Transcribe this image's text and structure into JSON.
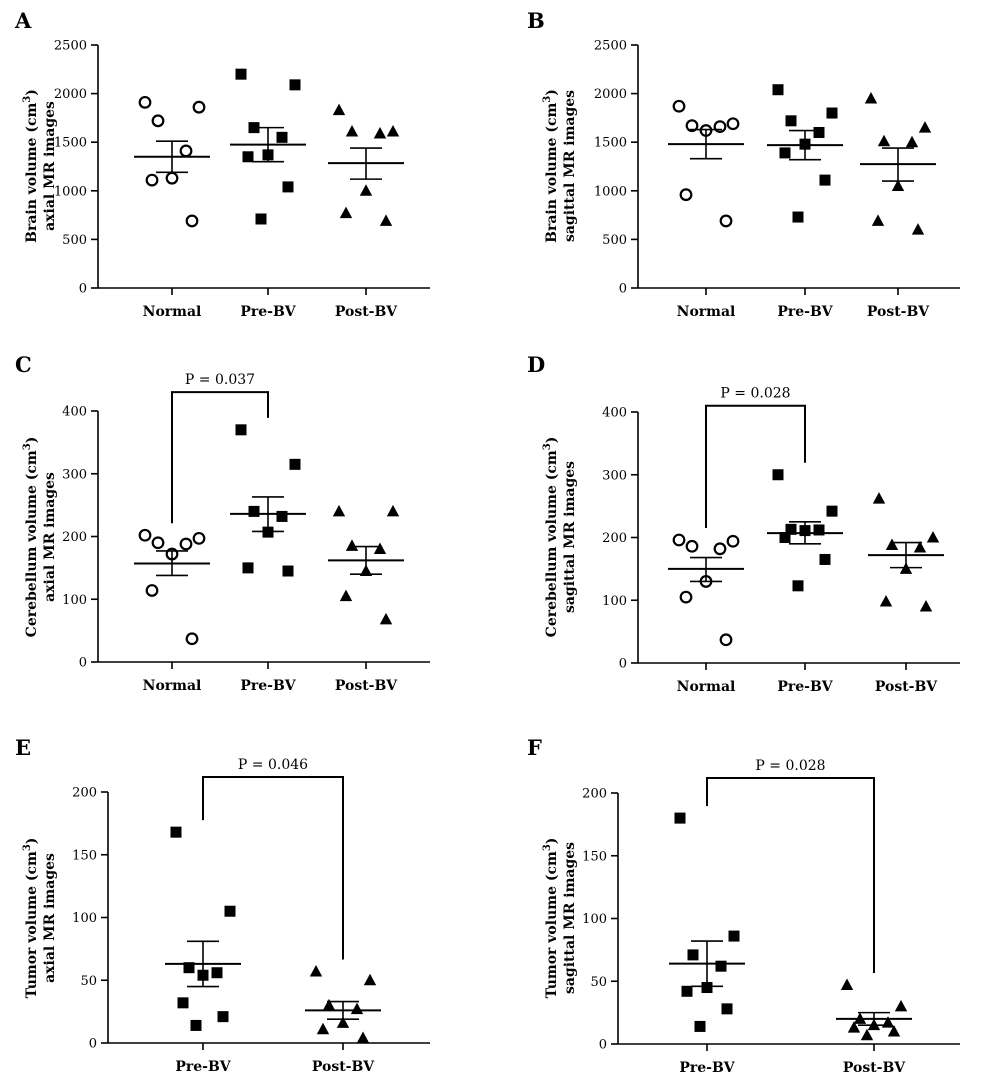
{
  "chart_data": [
    {
      "type": "scatter",
      "panel": "A",
      "ylabel": [
        "Brain volume (cm",
        "3",
        ")",
        "axial MR images"
      ],
      "ylim": [
        0,
        2500
      ],
      "yticks": [
        0,
        500,
        1000,
        1500,
        2000,
        2500
      ],
      "categories": [
        "Normal",
        "Pre-BV",
        "Post-BV"
      ],
      "series": [
        {
          "marker": "circle",
          "values": [
            1910,
            1860,
            1720,
            1410,
            1130,
            1110,
            690
          ],
          "mean": 1350,
          "sem_low": 1190,
          "sem_high": 1510
        },
        {
          "marker": "square",
          "values": [
            2200,
            2090,
            1650,
            1550,
            1370,
            1350,
            1040,
            710
          ],
          "mean": 1475,
          "sem_low": 1300,
          "sem_high": 1650
        },
        {
          "marker": "triangle",
          "values": [
            1830,
            1610,
            1610,
            1590,
            1000,
            770,
            690
          ],
          "mean": 1285,
          "sem_low": 1120,
          "sem_high": 1440
        }
      ],
      "annotation": null
    },
    {
      "type": "scatter",
      "panel": "B",
      "ylabel": [
        "Brain volume (cm",
        "3",
        ")",
        "sagittal MR images"
      ],
      "ylim": [
        0,
        2500
      ],
      "yticks": [
        0,
        500,
        1000,
        1500,
        2000,
        2500
      ],
      "categories": [
        "Normal",
        "Pre-BV",
        "Post-BV"
      ],
      "series": [
        {
          "marker": "circle",
          "values": [
            1870,
            1690,
            1670,
            1660,
            1620,
            960,
            690
          ],
          "mean": 1480,
          "sem_low": 1330,
          "sem_high": 1630
        },
        {
          "marker": "square",
          "values": [
            2040,
            1800,
            1720,
            1600,
            1480,
            1390,
            1110,
            730
          ],
          "mean": 1470,
          "sem_low": 1320,
          "sem_high": 1620
        },
        {
          "marker": "triangle",
          "values": [
            1950,
            1650,
            1510,
            1500,
            1050,
            690,
            600
          ],
          "mean": 1275,
          "sem_low": 1100,
          "sem_high": 1440
        }
      ],
      "annotation": null
    },
    {
      "type": "scatter",
      "panel": "C",
      "ylabel": [
        "Cerebellum volume (cm",
        "3",
        ")",
        "axial MR images"
      ],
      "ylim": [
        0,
        400
      ],
      "yticks": [
        0,
        100,
        200,
        300,
        400
      ],
      "categories": [
        "Normal",
        "Pre-BV",
        "Post-BV"
      ],
      "series": [
        {
          "marker": "circle",
          "values": [
            202,
            197,
            190,
            188,
            172,
            114,
            37
          ],
          "mean": 157,
          "sem_low": 138,
          "sem_high": 177
        },
        {
          "marker": "square",
          "values": [
            370,
            315,
            240,
            232,
            207,
            150,
            145
          ],
          "mean": 236,
          "sem_low": 208,
          "sem_high": 263
        },
        {
          "marker": "triangle",
          "values": [
            240,
            240,
            185,
            180,
            145,
            105,
            68
          ],
          "mean": 162,
          "sem_low": 140,
          "sem_high": 184
        }
      ],
      "annotation": {
        "text": "P = 0.037",
        "from": 0,
        "to": 1,
        "y": 430
      }
    },
    {
      "type": "scatter",
      "panel": "D",
      "ylabel": [
        "Cerebellum volume (cm",
        "3",
        ")",
        "sagittal MR images"
      ],
      "ylim": [
        0,
        400
      ],
      "yticks": [
        0,
        100,
        200,
        300,
        400
      ],
      "categories": [
        "Normal",
        "Pre-BV",
        "Post-BV"
      ],
      "series": [
        {
          "marker": "circle",
          "values": [
            196,
            194,
            186,
            182,
            130,
            105,
            37
          ],
          "mean": 150,
          "sem_low": 130,
          "sem_high": 168
        },
        {
          "marker": "square",
          "values": [
            300,
            242,
            213,
            212,
            211,
            200,
            165,
            123
          ],
          "mean": 207,
          "sem_low": 190,
          "sem_high": 225
        },
        {
          "marker": "triangle",
          "values": [
            262,
            200,
            188,
            184,
            150,
            98,
            90
          ],
          "mean": 172,
          "sem_low": 152,
          "sem_high": 192
        }
      ],
      "annotation": {
        "text": "P = 0.028",
        "from": 0,
        "to": 1,
        "y": 410
      }
    },
    {
      "type": "scatter",
      "panel": "E",
      "ylabel": [
        "Tumor volume (cm",
        "3",
        ")",
        "axial MR images"
      ],
      "ylim": [
        0,
        200
      ],
      "yticks": [
        0,
        50,
        100,
        150,
        200
      ],
      "categories": [
        "Pre-BV",
        "Post-BV"
      ],
      "series": [
        {
          "marker": "square",
          "values": [
            168,
            105,
            60,
            56,
            54,
            32,
            21,
            14
          ],
          "mean": 63,
          "sem_low": 45,
          "sem_high": 81
        },
        {
          "marker": "triangle",
          "values": [
            57,
            50,
            30,
            27,
            16,
            11,
            4
          ],
          "mean": 26,
          "sem_low": 19,
          "sem_high": 33
        }
      ],
      "annotation": {
        "text": "P = 0.046",
        "from": 0,
        "to": 1,
        "y": 212
      }
    },
    {
      "type": "scatter",
      "panel": "F",
      "ylabel": [
        "Tumor volume (cm",
        "3",
        ")",
        "sagittal MR images"
      ],
      "ylim": [
        0,
        200
      ],
      "yticks": [
        0,
        50,
        100,
        150,
        200
      ],
      "categories": [
        "Pre-BV",
        "Post-BV"
      ],
      "series": [
        {
          "marker": "square",
          "values": [
            180,
            86,
            71,
            62,
            45,
            42,
            28,
            14
          ],
          "mean": 64,
          "sem_low": 46,
          "sem_high": 82
        },
        {
          "marker": "triangle",
          "values": [
            47,
            30,
            20,
            17,
            15,
            13,
            10,
            7
          ],
          "mean": 20,
          "sem_low": 15,
          "sem_high": 25
        }
      ],
      "annotation": {
        "text": "P = 0.028",
        "from": 0,
        "to": 1,
        "y": 212
      }
    }
  ]
}
